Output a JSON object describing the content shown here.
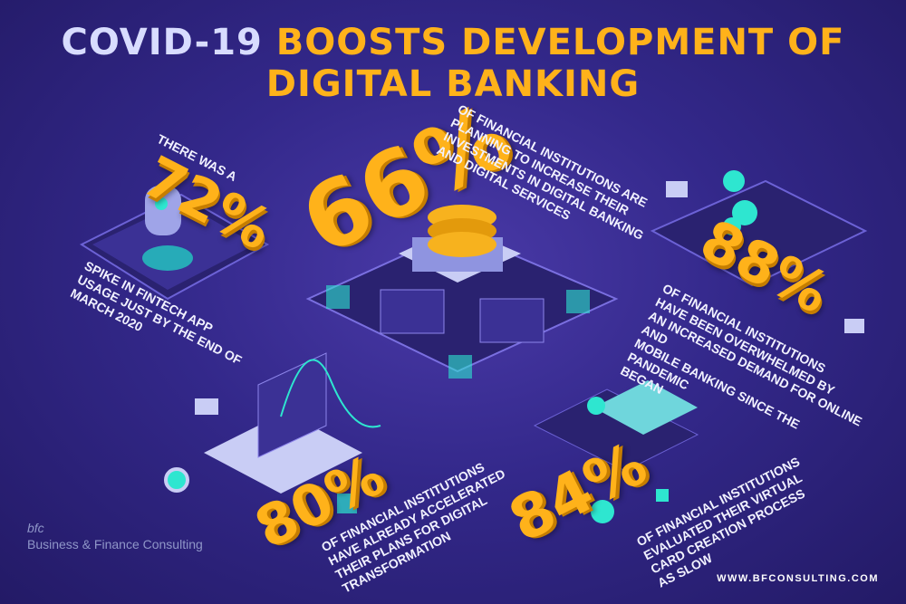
{
  "title": {
    "part1": "COVID-19",
    "part2": "BOOSTS DEVELOPMENT OF DIGITAL BANKING"
  },
  "stats": [
    {
      "pretext": "THERE WAS A",
      "value": "72%",
      "caption": [
        "SPIKE IN FINTECH APP",
        "USAGE JUST BY THE END OF",
        "MARCH 2020"
      ]
    },
    {
      "value": "66%",
      "caption": [
        "OF FINANCIAL INSTITUTIONS ARE",
        "PLANNING TO INCREASE THEIR",
        "INVESTMENTS IN DIGITAL BANKING",
        "AND DIGITAL SERVICES"
      ]
    },
    {
      "value": "88%",
      "caption": [
        "OF FINANCIAL INSTITUTIONS",
        "HAVE BEEN OVERWHELMED BY",
        "AN INCREASED DEMAND FOR ONLINE AND",
        "MOBILE BANKING SINCE THE PANDEMIC",
        "BEGAN"
      ]
    },
    {
      "value": "80%",
      "caption": [
        "OF FINANCIAL INSTITUTIONS",
        "HAVE ALREADY ACCELERATED",
        "THEIR PLANS FOR DIGITAL",
        "TRANSFORMATION"
      ]
    },
    {
      "value": "84%",
      "caption": [
        "OF FINANCIAL INSTITUTIONS",
        "EVALUATED THEIR VIRTUAL",
        "CARD CREATION PROCESS",
        "AS SLOW"
      ]
    }
  ],
  "logo": {
    "mark": "bfc",
    "name": "Business & Finance Consulting"
  },
  "url": "WWW.BFCONSULTING.COM",
  "colors": {
    "accent": "#ffb21a",
    "background": "#33288a",
    "teal": "#2ee6d0"
  }
}
